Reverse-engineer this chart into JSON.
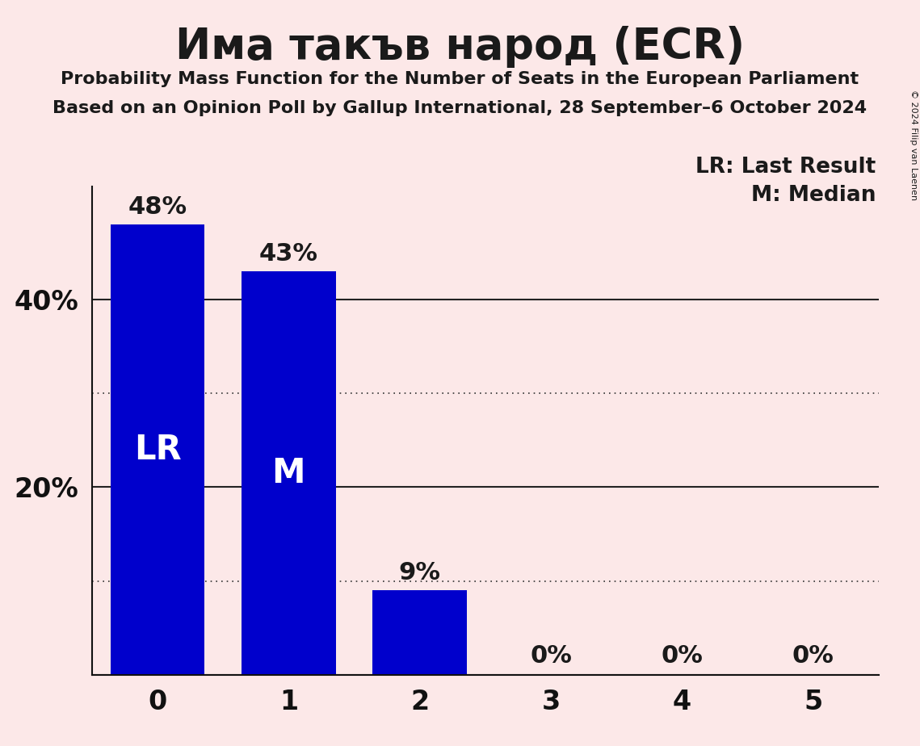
{
  "title": "Има такъв народ (ECR)",
  "subtitle1": "Probability Mass Function for the Number of Seats in the European Parliament",
  "subtitle2": "Based on an Opinion Poll by Gallup International, 28 September–6 October 2024",
  "copyright": "© 2024 Filip van Laenen",
  "legend_lr": "LR: Last Result",
  "legend_m": "M: Median",
  "categories": [
    0,
    1,
    2,
    3,
    4,
    5
  ],
  "values": [
    0.48,
    0.43,
    0.09,
    0.0,
    0.0,
    0.0
  ],
  "bar_color": "#0000cc",
  "bar_labels": [
    "48%",
    "43%",
    "9%",
    "0%",
    "0%",
    "0%"
  ],
  "bar_inner_labels": [
    "LR",
    "M",
    "",
    "",
    "",
    ""
  ],
  "background_color": "#fce8e8",
  "title_color": "#1a1a1a",
  "bar_label_color": "#1a1a1a",
  "inner_label_color": "#ffffff",
  "ytick_labels": [
    "20%",
    "40%"
  ],
  "ytick_values": [
    0.2,
    0.4
  ],
  "ymax": 0.52,
  "grid_major_color": "#222222",
  "grid_dotted_color": "#333333",
  "grid_major_values": [
    0.2,
    0.4
  ],
  "grid_dotted_values": [
    0.1,
    0.3
  ],
  "axis_color": "#111111"
}
